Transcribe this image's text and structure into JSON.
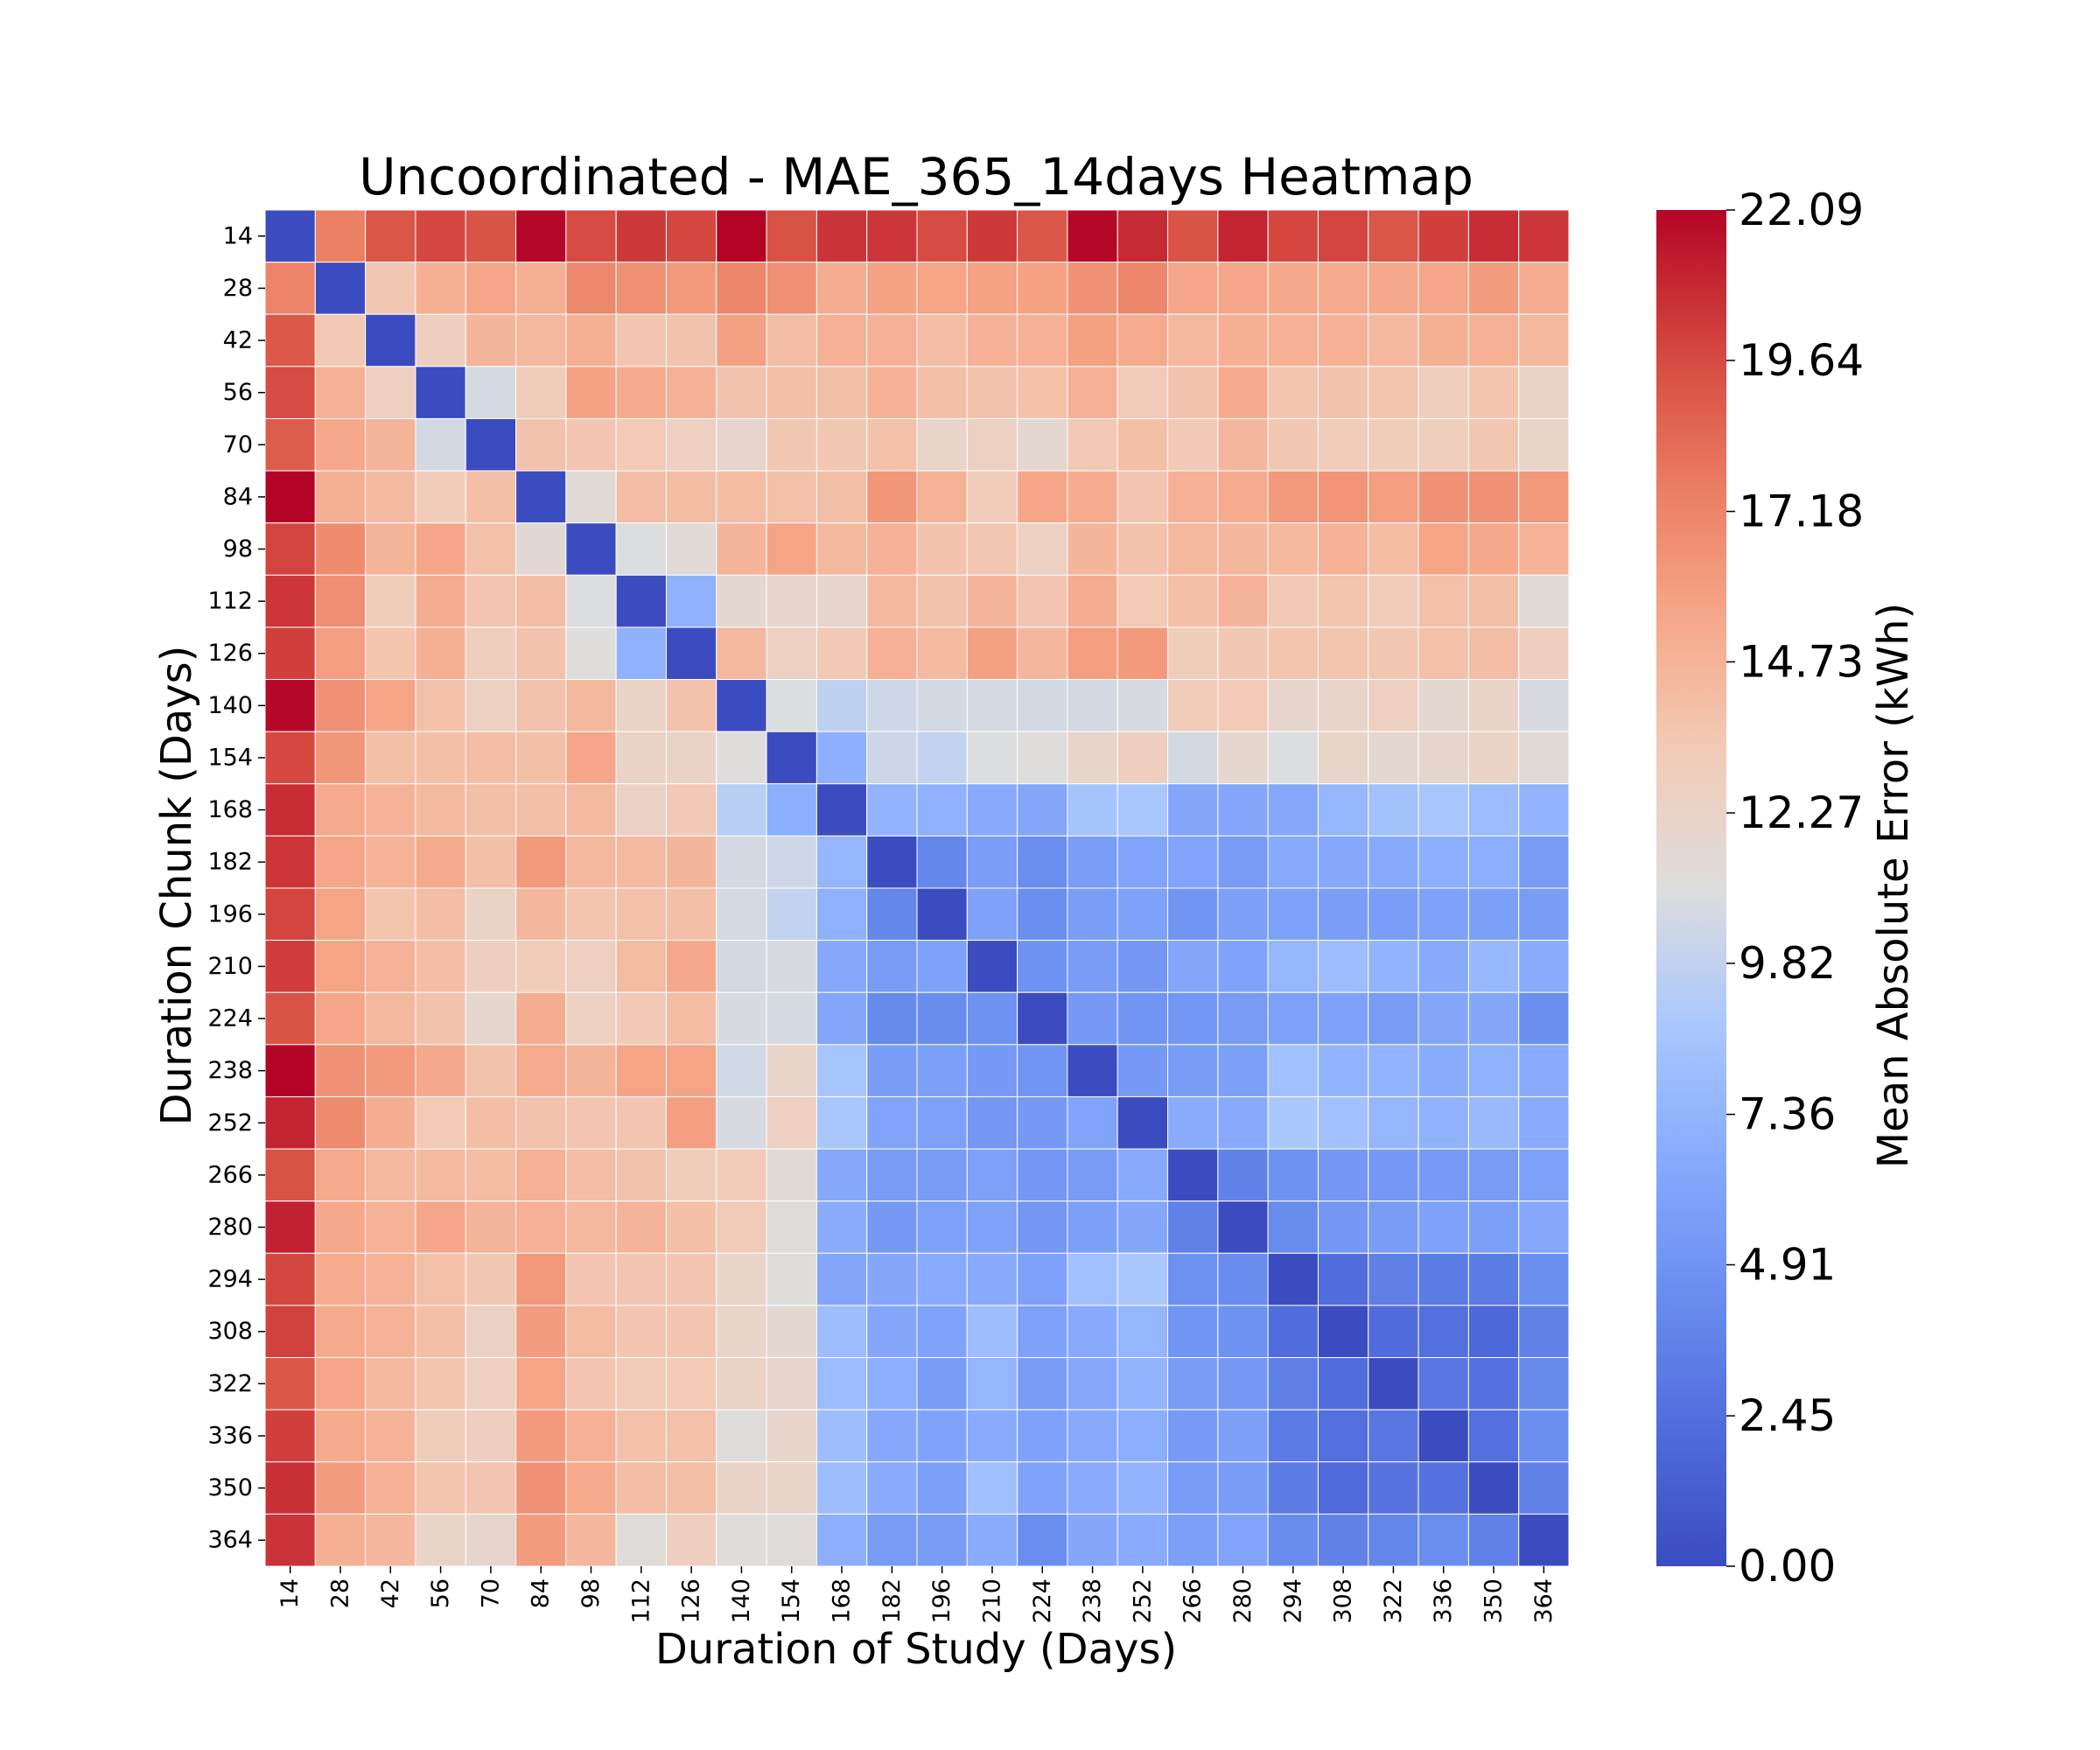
{
  "chart_data": {
    "type": "heatmap",
    "title": "Uncoordinated - MAE_365_14days Heatmap",
    "xlabel": "Duration of Study (Days)",
    "ylabel": "Duration Chunk (Days)",
    "colorbar_label": "Mean Absolute Error (kWh)",
    "colormap": "coolwarm",
    "vmin": 0.0,
    "vmax": 22.09,
    "colorbar_ticks": [
      "0.00",
      "2.45",
      "4.91",
      "7.36",
      "9.82",
      "12.27",
      "14.73",
      "17.18",
      "19.64",
      "22.09"
    ],
    "x_categories": [
      "14",
      "28",
      "42",
      "56",
      "70",
      "84",
      "98",
      "112",
      "126",
      "140",
      "154",
      "168",
      "182",
      "196",
      "210",
      "224",
      "238",
      "252",
      "266",
      "280",
      "294",
      "308",
      "322",
      "336",
      "350",
      "364"
    ],
    "y_categories": [
      "14",
      "28",
      "42",
      "56",
      "70",
      "84",
      "98",
      "112",
      "126",
      "140",
      "154",
      "168",
      "182",
      "196",
      "210",
      "224",
      "238",
      "252",
      "266",
      "280",
      "294",
      "308",
      "322",
      "336",
      "350",
      "364"
    ],
    "values": [
      [
        0.0,
        17.4,
        19.2,
        19.8,
        19.3,
        22.0,
        19.6,
        20.3,
        19.8,
        22.1,
        19.4,
        20.5,
        20.4,
        19.6,
        20.3,
        19.2,
        22.0,
        20.8,
        19.3,
        21.0,
        19.8,
        19.9,
        19.2,
        20.1,
        20.7,
        20.4
      ],
      [
        17.2,
        0.0,
        13.5,
        15.0,
        15.5,
        15.0,
        17.0,
        16.6,
        16.2,
        17.1,
        16.6,
        15.1,
        15.7,
        15.6,
        15.7,
        15.7,
        16.5,
        17.1,
        15.5,
        15.5,
        15.4,
        15.3,
        15.4,
        15.5,
        16.0,
        15.1
      ],
      [
        19.1,
        13.4,
        0.0,
        12.8,
        14.6,
        14.4,
        15.0,
        13.6,
        13.8,
        15.8,
        14.1,
        14.9,
        14.9,
        14.1,
        14.9,
        14.9,
        15.8,
        15.2,
        14.4,
        15.0,
        14.9,
        14.9,
        14.4,
        15.0,
        14.9,
        14.4
      ],
      [
        19.6,
        14.9,
        12.7,
        0.0,
        10.7,
        13.0,
        15.7,
        15.3,
        14.9,
        13.8,
        14.0,
        14.0,
        14.9,
        14.0,
        13.8,
        13.9,
        14.9,
        13.2,
        13.8,
        15.3,
        13.7,
        13.8,
        13.7,
        12.9,
        13.7,
        12.4
      ],
      [
        18.9,
        15.4,
        14.7,
        10.6,
        0.0,
        13.8,
        13.6,
        13.3,
        12.7,
        12.0,
        13.5,
        13.5,
        13.9,
        12.2,
        12.6,
        11.8,
        13.4,
        14.0,
        13.4,
        14.5,
        13.5,
        13.1,
        13.0,
        12.9,
        13.5,
        12.2
      ],
      [
        22.1,
        15.0,
        14.3,
        13.1,
        14.0,
        0.0,
        11.4,
        14.1,
        14.2,
        14.2,
        13.9,
        14.0,
        16.3,
        14.8,
        13.1,
        15.5,
        15.2,
        13.6,
        14.9,
        15.2,
        16.2,
        16.4,
        15.9,
        16.5,
        16.5,
        16.2
      ],
      [
        19.9,
        16.8,
        14.7,
        15.5,
        13.9,
        11.6,
        0.0,
        11.0,
        11.5,
        14.6,
        15.6,
        14.4,
        14.9,
        13.8,
        13.5,
        12.6,
        14.6,
        13.8,
        14.4,
        14.5,
        14.4,
        14.9,
        14.2,
        15.6,
        15.4,
        14.8
      ],
      [
        20.4,
        16.7,
        13.0,
        15.1,
        13.6,
        14.1,
        11.0,
        0.0,
        7.2,
        11.8,
        12.0,
        12.0,
        14.4,
        13.8,
        14.7,
        13.6,
        15.1,
        13.3,
        14.0,
        14.7,
        13.4,
        13.7,
        13.1,
        13.9,
        14.0,
        11.4
      ],
      [
        20.1,
        15.9,
        13.7,
        15.0,
        12.9,
        13.8,
        11.1,
        7.2,
        0.0,
        14.4,
        12.6,
        13.4,
        14.9,
        14.3,
        15.8,
        14.5,
        15.9,
        16.1,
        13.0,
        13.5,
        13.7,
        13.7,
        13.5,
        13.9,
        14.1,
        12.8
      ],
      [
        22.0,
        16.6,
        15.6,
        13.9,
        12.6,
        13.8,
        14.4,
        12.4,
        13.8,
        0.0,
        11.0,
        9.7,
        10.4,
        10.6,
        10.7,
        10.6,
        10.6,
        10.8,
        13.1,
        13.3,
        12.0,
        12.1,
        12.7,
        11.8,
        12.3,
        10.8
      ],
      [
        19.7,
        16.3,
        14.0,
        14.0,
        14.1,
        14.0,
        15.5,
        12.4,
        12.4,
        11.1,
        0.0,
        7.0,
        10.3,
        9.9,
        11.0,
        11.1,
        12.1,
        12.8,
        10.6,
        11.9,
        11.0,
        12.2,
        11.8,
        12.0,
        12.4,
        11.4
      ],
      [
        20.7,
        15.3,
        14.8,
        14.3,
        14.0,
        14.0,
        14.3,
        12.5,
        13.4,
        9.5,
        6.9,
        0.0,
        7.4,
        7.1,
        6.6,
        6.3,
        8.5,
        8.8,
        6.3,
        6.4,
        6.5,
        7.6,
        8.4,
        8.7,
        8.0,
        7.4
      ],
      [
        20.4,
        15.5,
        14.8,
        15.3,
        14.0,
        16.1,
        14.4,
        14.3,
        14.6,
        10.6,
        10.4,
        7.5,
        0.0,
        4.0,
        5.7,
        4.5,
        5.7,
        6.2,
        6.2,
        5.5,
        6.6,
        6.5,
        6.6,
        6.9,
        6.9,
        5.5
      ],
      [
        19.9,
        15.6,
        13.7,
        14.1,
        12.3,
        14.5,
        13.7,
        13.9,
        14.0,
        10.7,
        9.9,
        7.1,
        4.0,
        0.0,
        6.0,
        4.6,
        5.7,
        6.0,
        5.0,
        5.8,
        5.9,
        5.7,
        5.7,
        6.0,
        5.8,
        5.6
      ],
      [
        20.2,
        15.6,
        14.8,
        14.1,
        12.8,
        13.1,
        12.7,
        14.2,
        15.4,
        10.6,
        10.8,
        6.5,
        5.5,
        6.0,
        0.0,
        4.8,
        5.6,
        5.2,
        6.3,
        6.1,
        7.5,
        8.0,
        7.3,
        6.6,
        7.7,
        6.8
      ],
      [
        19.3,
        15.5,
        14.4,
        13.8,
        11.9,
        15.1,
        12.6,
        13.4,
        14.2,
        10.8,
        10.7,
        6.3,
        4.2,
        4.4,
        4.8,
        0.0,
        5.3,
        5.0,
        5.1,
        5.5,
        5.9,
        6.0,
        5.5,
        6.3,
        6.4,
        4.6
      ],
      [
        22.1,
        16.5,
        16.1,
        15.4,
        13.8,
        15.2,
        14.7,
        15.6,
        15.6,
        10.5,
        12.2,
        8.6,
        5.6,
        5.8,
        5.3,
        5.0,
        0.0,
        5.3,
        5.6,
        5.8,
        8.3,
        7.3,
        7.3,
        6.8,
        7.2,
        6.7
      ],
      [
        21.0,
        16.9,
        15.1,
        13.3,
        14.1,
        13.8,
        13.6,
        13.6,
        15.9,
        10.8,
        12.7,
        8.8,
        6.2,
        5.9,
        5.2,
        5.3,
        6.2,
        0.0,
        6.8,
        6.6,
        8.9,
        8.3,
        7.5,
        7.2,
        7.8,
        6.7
      ],
      [
        19.4,
        15.3,
        14.4,
        14.3,
        14.2,
        14.9,
        14.1,
        13.8,
        13.0,
        13.2,
        11.4,
        6.5,
        5.5,
        5.5,
        5.9,
        5.2,
        5.5,
        6.6,
        0.0,
        3.6,
        4.8,
        5.2,
        5.3,
        5.4,
        5.5,
        5.9
      ],
      [
        21.1,
        15.4,
        14.8,
        15.5,
        14.7,
        14.9,
        14.4,
        14.7,
        14.0,
        13.2,
        11.2,
        6.8,
        5.3,
        5.9,
        6.1,
        5.2,
        5.8,
        6.4,
        3.6,
        0.0,
        4.3,
        5.2,
        5.6,
        6.0,
        5.8,
        6.5
      ],
      [
        19.8,
        15.2,
        14.8,
        13.9,
        13.5,
        16.2,
        13.6,
        13.6,
        13.6,
        12.2,
        11.1,
        6.3,
        6.4,
        6.7,
        6.6,
        5.9,
        8.3,
        8.9,
        4.7,
        4.4,
        0.0,
        2.3,
        3.5,
        3.2,
        3.3,
        4.6
      ],
      [
        20.0,
        15.3,
        14.8,
        14.0,
        12.5,
        16.0,
        14.2,
        13.6,
        13.6,
        12.2,
        11.8,
        8.1,
        6.4,
        6.1,
        8.1,
        6.0,
        6.6,
        7.5,
        5.0,
        4.8,
        2.3,
        0.0,
        2.2,
        2.4,
        1.9,
        3.6
      ],
      [
        19.2,
        15.5,
        14.4,
        13.7,
        12.7,
        15.6,
        13.6,
        13.2,
        13.3,
        12.4,
        12.0,
        7.9,
        6.9,
        5.6,
        7.5,
        5.6,
        6.5,
        7.4,
        5.6,
        5.3,
        3.5,
        2.3,
        0.0,
        2.9,
        2.6,
        4.2
      ],
      [
        20.1,
        15.3,
        14.8,
        13.0,
        12.8,
        16.1,
        14.9,
        13.9,
        13.9,
        11.1,
        12.1,
        8.1,
        6.5,
        6.1,
        6.7,
        6.0,
        6.6,
        6.9,
        5.4,
        5.8,
        3.2,
        2.4,
        2.9,
        0.0,
        2.5,
        4.6
      ],
      [
        20.6,
        16.0,
        14.9,
        13.7,
        13.6,
        16.5,
        15.3,
        14.1,
        14.0,
        12.3,
        12.2,
        8.1,
        6.7,
        5.8,
        8.2,
        6.1,
        6.7,
        7.3,
        5.5,
        5.6,
        3.3,
        2.0,
        2.7,
        2.6,
        0.0,
        3.7
      ],
      [
        20.5,
        15.0,
        14.5,
        12.2,
        12.0,
        16.0,
        14.5,
        11.3,
        12.8,
        11.1,
        11.3,
        7.0,
        5.5,
        5.6,
        6.8,
        4.5,
        6.4,
        6.7,
        5.8,
        6.2,
        4.3,
        3.7,
        4.0,
        4.5,
        3.6,
        0.0
      ]
    ]
  }
}
